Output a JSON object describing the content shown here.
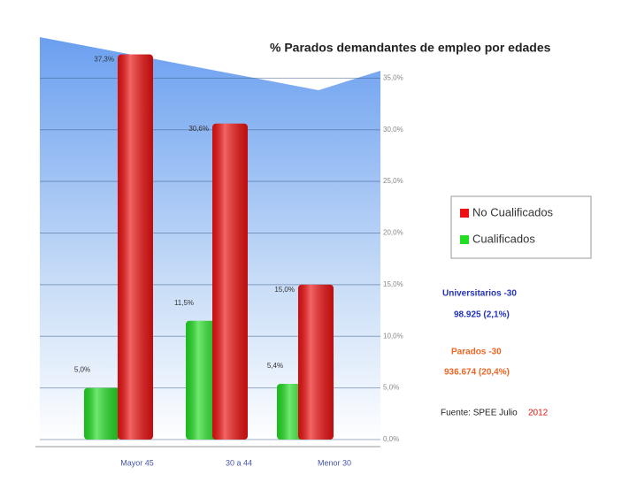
{
  "chart_data": {
    "type": "bar",
    "title": "% Parados demandantes de empleo por edades",
    "categories": [
      "Mayor 45",
      "30 a 44",
      "Menor 30"
    ],
    "series": [
      {
        "name": "Cualificados",
        "color": "#22dd22",
        "values": [
          5.0,
          11.5,
          5.4
        ],
        "value_labels": [
          "5,0%",
          "11,5%",
          "5,4%"
        ]
      },
      {
        "name": "No Cualificados",
        "color": "#ee1111",
        "values": [
          37.3,
          30.6,
          15.0
        ],
        "value_labels": [
          "37,3%",
          "30,6%",
          "15,0%"
        ]
      }
    ],
    "ylim": [
      0,
      40
    ],
    "yticks": [
      {
        "value": 0,
        "label": "0,0%"
      },
      {
        "value": 5,
        "label": "5,0%"
      },
      {
        "value": 10,
        "label": "10,0%"
      },
      {
        "value": 15,
        "label": "15,0%"
      },
      {
        "value": 20,
        "label": "20,0%"
      },
      {
        "value": 25,
        "label": "25,0%"
      },
      {
        "value": 30,
        "label": "30,0%"
      },
      {
        "value": 35,
        "label": "35,0%"
      }
    ],
    "grid": true,
    "legend_order": [
      1,
      0
    ],
    "annotations": [
      {
        "text": "Universitarios -30",
        "color": "#2233bb"
      },
      {
        "text": "98.925 (2,1%)",
        "color": "#2233bb"
      },
      {
        "text": "Parados -30",
        "color": "#ee6622"
      },
      {
        "text": "936.674 (20,4%)",
        "color": "#ee6622"
      },
      {
        "text": "Fuente: SPEE Julio",
        "color": "#222222"
      },
      {
        "text": "2012",
        "color": "#dd1111"
      }
    ]
  }
}
